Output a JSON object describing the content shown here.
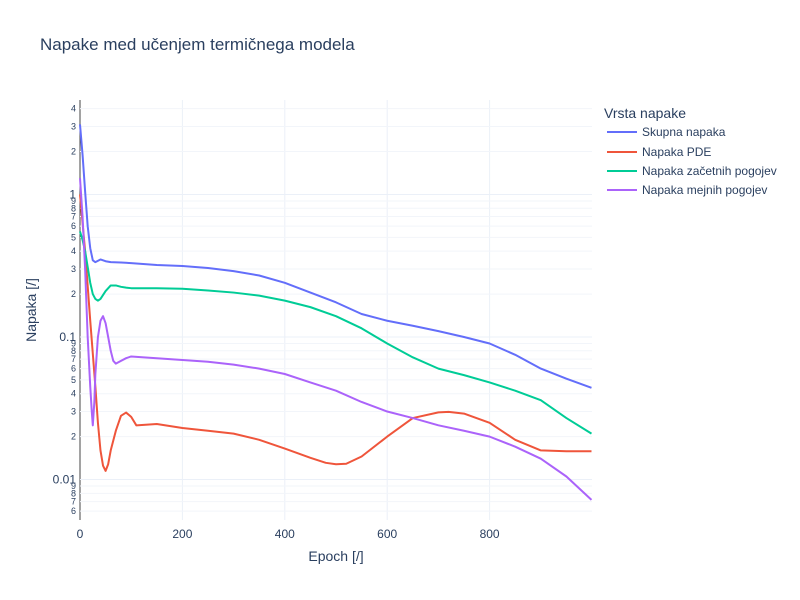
{
  "chart_data": {
    "type": "line",
    "title": "Napake med učenjem termičnega modela",
    "xlabel": "Epoch [/]",
    "ylabel": "Napaka [/]",
    "xlim": [
      0,
      1000
    ],
    "ylim": [
      0.0052,
      4.6
    ],
    "yscale": "log",
    "grid": true,
    "legend": {
      "title": "Vrsta napake",
      "position": "right"
    },
    "x_ticks": [
      0,
      200,
      400,
      600,
      800
    ],
    "x_tick_labels": [
      "0",
      "200",
      "400",
      "600",
      "800"
    ],
    "y_major_ticks": [
      0.01,
      0.1,
      1
    ],
    "y_major_tick_labels": [
      "0.01",
      "0.1",
      "1"
    ],
    "y_minor_ticks": [
      0.006,
      0.007,
      0.008,
      0.009,
      0.02,
      0.03,
      0.04,
      0.05,
      0.06,
      0.07,
      0.08,
      0.09,
      0.2,
      0.3,
      0.4,
      0.5,
      0.6,
      0.7,
      0.8,
      0.9,
      2,
      3,
      4
    ],
    "y_minor_tick_labels": [
      "6",
      "7",
      "8",
      "9",
      "2",
      "3",
      "4",
      "5",
      "6",
      "7",
      "8",
      "9",
      "2",
      "3",
      "4",
      "5",
      "6",
      "7",
      "8",
      "9",
      "2",
      "3",
      "4"
    ],
    "series": [
      {
        "name": "Skupna napaka",
        "color": "#636efa",
        "x": [
          0,
          5,
          10,
          15,
          20,
          25,
          30,
          40,
          50,
          60,
          80,
          100,
          150,
          200,
          250,
          300,
          350,
          400,
          450,
          500,
          550,
          600,
          650,
          700,
          750,
          800,
          850,
          900,
          950,
          999
        ],
        "y": [
          3.1,
          1.9,
          1.05,
          0.6,
          0.42,
          0.345,
          0.335,
          0.35,
          0.34,
          0.335,
          0.333,
          0.33,
          0.32,
          0.315,
          0.305,
          0.29,
          0.27,
          0.24,
          0.205,
          0.175,
          0.145,
          0.13,
          0.12,
          0.11,
          0.1,
          0.09,
          0.075,
          0.06,
          0.051,
          0.044
        ]
      },
      {
        "name": "Napaka PDE",
        "color": "#ef553b",
        "x": [
          0,
          10,
          20,
          30,
          35,
          40,
          45,
          50,
          55,
          60,
          70,
          80,
          90,
          100,
          110,
          150,
          200,
          250,
          300,
          350,
          400,
          450,
          480,
          500,
          520,
          550,
          600,
          650,
          700,
          720,
          750,
          800,
          850,
          900,
          950,
          999
        ],
        "y": [
          1.0,
          0.4,
          0.13,
          0.045,
          0.025,
          0.016,
          0.0125,
          0.0115,
          0.0128,
          0.016,
          0.022,
          0.028,
          0.0295,
          0.0275,
          0.024,
          0.0245,
          0.023,
          0.022,
          0.021,
          0.019,
          0.0165,
          0.0142,
          0.0131,
          0.0128,
          0.0129,
          0.0145,
          0.02,
          0.027,
          0.0296,
          0.0298,
          0.029,
          0.025,
          0.019,
          0.016,
          0.0158,
          0.0158
        ]
      },
      {
        "name": "Napaka začetnih pogojev",
        "color": "#00cc96",
        "x": [
          0,
          5,
          10,
          15,
          20,
          25,
          30,
          35,
          40,
          50,
          60,
          70,
          80,
          90,
          100,
          150,
          200,
          250,
          300,
          350,
          400,
          450,
          500,
          550,
          600,
          650,
          700,
          750,
          800,
          850,
          900,
          950,
          999
        ],
        "y": [
          0.55,
          0.48,
          0.4,
          0.31,
          0.24,
          0.2,
          0.185,
          0.18,
          0.185,
          0.21,
          0.23,
          0.23,
          0.225,
          0.222,
          0.22,
          0.22,
          0.218,
          0.212,
          0.205,
          0.195,
          0.18,
          0.162,
          0.14,
          0.115,
          0.09,
          0.072,
          0.06,
          0.054,
          0.048,
          0.042,
          0.036,
          0.027,
          0.021
        ]
      },
      {
        "name": "Napaka mejnih pogojev",
        "color": "#ab63fa",
        "x": [
          0,
          5,
          10,
          15,
          20,
          23,
          25,
          28,
          30,
          35,
          40,
          45,
          50,
          55,
          60,
          65,
          70,
          80,
          90,
          100,
          150,
          200,
          250,
          300,
          350,
          400,
          450,
          500,
          550,
          600,
          650,
          700,
          750,
          800,
          850,
          900,
          950,
          999
        ],
        "y": [
          1.3,
          0.7,
          0.3,
          0.1,
          0.045,
          0.03,
          0.024,
          0.035,
          0.055,
          0.1,
          0.13,
          0.14,
          0.125,
          0.1,
          0.08,
          0.068,
          0.065,
          0.068,
          0.071,
          0.073,
          0.071,
          0.069,
          0.067,
          0.064,
          0.06,
          0.055,
          0.048,
          0.042,
          0.035,
          0.03,
          0.027,
          0.024,
          0.022,
          0.02,
          0.017,
          0.014,
          0.0105,
          0.0072
        ]
      }
    ]
  }
}
